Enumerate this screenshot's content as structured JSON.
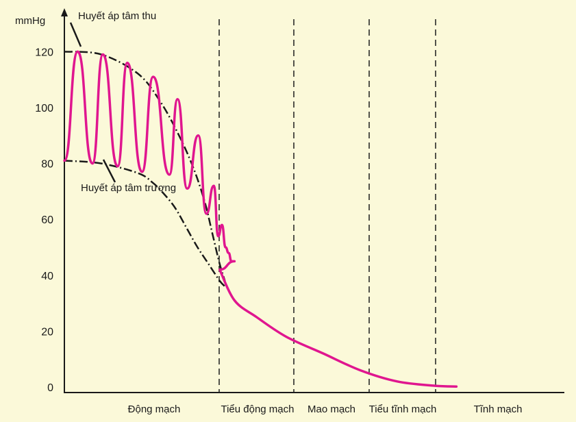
{
  "chart_data": {
    "type": "line",
    "ylabel": "mmHg",
    "ylim": [
      0,
      128
    ],
    "yticks": [
      0,
      20,
      40,
      60,
      80,
      100,
      120
    ],
    "grid": false,
    "regions": [
      "Động mạch",
      "Tiểu động mạch",
      "Mao mạch",
      "Tiểu tĩnh mạch",
      "Tĩnh mạch"
    ],
    "annotations": {
      "systolic_label": "Huyết áp tâm thu",
      "diastolic_label": "Huyết áp tâm trương"
    },
    "systolic_envelope": [
      [
        0,
        120
      ],
      [
        0.5,
        119
      ],
      [
        1.0,
        112
      ],
      [
        1.3,
        102
      ],
      [
        1.55,
        90
      ],
      [
        1.75,
        78
      ],
      [
        1.9,
        66
      ],
      [
        2.0,
        55
      ],
      [
        2.1,
        44
      ],
      [
        2.17,
        38
      ]
    ],
    "diastolic_envelope": [
      [
        0,
        81
      ],
      [
        0.5,
        80
      ],
      [
        1.0,
        76.5
      ],
      [
        1.2,
        73
      ],
      [
        1.35,
        69
      ],
      [
        1.5,
        64
      ],
      [
        1.65,
        57
      ],
      [
        1.8,
        50
      ],
      [
        1.95,
        44
      ],
      [
        2.1,
        38
      ],
      [
        2.17,
        36
      ]
    ],
    "mean_pressure": [
      [
        2.1,
        42
      ],
      [
        2.3,
        31
      ],
      [
        2.6,
        25
      ],
      [
        3.0,
        18
      ],
      [
        3.5,
        12
      ],
      [
        4.0,
        6
      ],
      [
        4.5,
        2
      ],
      [
        5.0,
        0.5
      ],
      [
        5.3,
        0.2
      ]
    ],
    "pulse_peaks": [
      [
        0.18,
        120
      ],
      [
        0.52,
        119
      ],
      [
        0.85,
        116
      ],
      [
        1.2,
        111
      ],
      [
        1.53,
        103
      ],
      [
        1.81,
        90
      ],
      [
        2.02,
        72
      ],
      [
        2.13,
        58
      ],
      [
        2.22,
        48
      ],
      [
        2.3,
        45
      ]
    ],
    "pulse_troughs": [
      [
        0.0,
        81
      ],
      [
        0.38,
        80
      ],
      [
        0.72,
        79
      ],
      [
        1.05,
        77
      ],
      [
        1.42,
        76
      ],
      [
        1.66,
        71
      ],
      [
        1.92,
        62
      ],
      [
        2.08,
        54
      ],
      [
        2.18,
        50
      ],
      [
        2.26,
        45
      ]
    ]
  }
}
